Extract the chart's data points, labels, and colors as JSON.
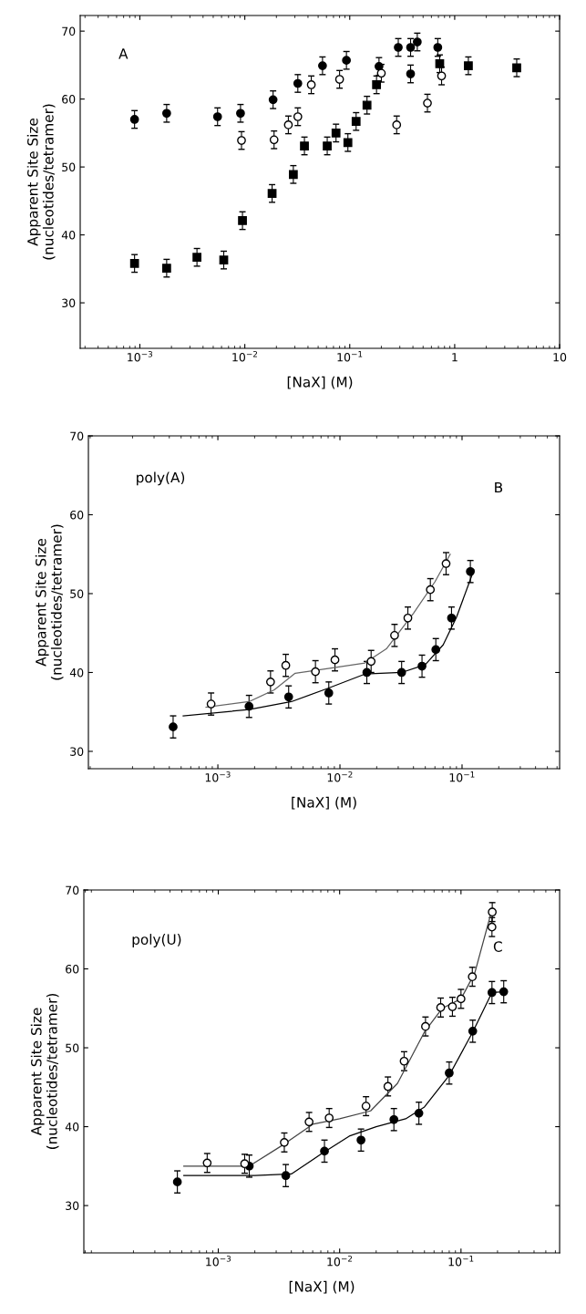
{
  "chart_data": [
    {
      "type": "scatter",
      "xlabel": "[NaX] (M)",
      "ylabel": "Apparent Site Size\n(nucleotides/tetramer)",
      "log": "x",
      "xlim": [
        0.00027,
        10
      ],
      "ylim": [
        23.3,
        72.3
      ],
      "xticks": [
        {
          "value": 0.001,
          "label": "10$^{−3}$"
        },
        {
          "value": 0.01,
          "label": "10$^{−2}$"
        },
        {
          "value": 0.1,
          "label": "10$^{−1}$"
        },
        1,
        10
      ],
      "yticks": [
        30,
        40,
        50,
        60,
        70
      ],
      "grid": false,
      "annotations": [
        "A"
      ],
      "series": [
        {
          "marker": "circle",
          "color": "#000000",
          "x": [
            0.00089,
            0.0018,
            0.0055,
            0.0091,
            0.0186,
            0.032,
            0.055,
            0.093,
            0.19,
            0.29,
            0.38,
            0.44,
            0.69,
            0.38
          ],
          "values": [
            57.0,
            57.9,
            57.4,
            57.9,
            59.9,
            62.3,
            64.9,
            65.7,
            64.8,
            67.6,
            67.6,
            68.4,
            67.6,
            63.7
          ],
          "errors": [
            1.3,
            1.3,
            1.3,
            1.3,
            1.3,
            1.3,
            1.3,
            1.3,
            1.3,
            1.3,
            1.3,
            1.3,
            1.3,
            1.3
          ]
        },
        {
          "marker": "square",
          "color": "#000000",
          "x": [
            0.00089,
            0.0018,
            0.0035,
            0.0063,
            0.0095,
            0.0182,
            0.029,
            0.037,
            0.061,
            0.074,
            0.096,
            0.115,
            0.146,
            0.18,
            0.72,
            1.35,
            3.9
          ],
          "values": [
            35.8,
            35.1,
            36.7,
            36.3,
            42.1,
            46.1,
            48.9,
            53.1,
            53.1,
            55.0,
            53.6,
            56.7,
            59.1,
            62.1,
            65.2,
            64.9,
            64.6
          ],
          "errors": [
            1.3,
            1.3,
            1.3,
            1.3,
            1.3,
            1.3,
            1.3,
            1.3,
            1.3,
            1.3,
            1.3,
            1.3,
            1.3,
            1.3,
            1.3,
            1.3,
            1.3
          ]
        },
        {
          "marker": "circle",
          "color": "#ffffff",
          "x": [
            0.0093,
            0.019,
            0.026,
            0.032,
            0.043,
            0.08,
            0.2,
            0.28,
            0.55,
            0.75
          ],
          "values": [
            53.9,
            54.0,
            56.2,
            57.4,
            62.1,
            62.9,
            63.8,
            56.2,
            59.4,
            63.4
          ],
          "errors": [
            1.3,
            1.3,
            1.3,
            1.3,
            1.3,
            1.3,
            1.3,
            1.3,
            1.3,
            1.3
          ]
        }
      ]
    },
    {
      "type": "scatter",
      "xlabel": "[NaX] (M)",
      "ylabel": "Apparent Site Size\n(nucleotides/tetramer)",
      "log": "x",
      "xlim": [
        8.7e-05,
        0.63
      ],
      "ylim": [
        27.8,
        70
      ],
      "xticks": [
        {
          "value": 0.001,
          "label": "10$^{−3}$"
        },
        {
          "value": 0.01,
          "label": "10$^{−2}$"
        },
        {
          "value": 0.1,
          "label": "10$^{−1}$"
        }
      ],
      "yticks": [
        30,
        40,
        50,
        60,
        70
      ],
      "grid": false,
      "annotations": [
        "poly(A)",
        "B"
      ],
      "series": [
        {
          "marker": "circle",
          "color": "#000000",
          "x": [
            0.00043,
            0.0018,
            0.0038,
            0.0081,
            0.0166,
            0.032,
            0.047,
            0.061,
            0.082,
            0.117
          ],
          "values": [
            33.1,
            35.7,
            36.9,
            37.4,
            40.0,
            40.0,
            40.8,
            42.9,
            46.9,
            52.8
          ],
          "errors": [
            1.4,
            1.4,
            1.4,
            1.4,
            1.4,
            1.4,
            1.4,
            1.4,
            1.4,
            1.4
          ]
        },
        {
          "marker": "circle",
          "color": "#ffffff",
          "x": [
            0.00088,
            0.0027,
            0.0036,
            0.0063,
            0.0091,
            0.018,
            0.028,
            0.036,
            0.055,
            0.074
          ],
          "values": [
            36.0,
            38.8,
            40.9,
            40.1,
            41.6,
            41.4,
            44.7,
            46.9,
            50.5,
            53.8
          ],
          "errors": [
            1.4,
            1.4,
            1.4,
            1.4,
            1.4,
            1.4,
            1.4,
            1.4,
            1.4,
            1.4
          ]
        },
        {
          "type": "line",
          "line_style": "solid",
          "color": "#000000",
          "x": [
            0.00052,
            0.0018,
            0.004,
            0.008,
            0.016,
            0.032,
            0.05,
            0.07,
            0.09,
            0.125
          ],
          "values": [
            34.5,
            35.3,
            36.3,
            38.0,
            39.8,
            40.0,
            41.0,
            43.5,
            47.0,
            53.0
          ]
        },
        {
          "type": "line",
          "line_style": "solid",
          "color": "#666666",
          "x": [
            0.0008,
            0.0018,
            0.0029,
            0.0043,
            0.008,
            0.016,
            0.024,
            0.04,
            0.06,
            0.08
          ],
          "values": [
            35.6,
            36.3,
            37.8,
            39.9,
            40.5,
            41.2,
            43.0,
            47.5,
            51.5,
            55.0
          ]
        }
      ]
    },
    {
      "type": "scatter",
      "xlabel": "[NaX] (M)",
      "ylabel": "Apparent Site Size\n(nucleotides/tetramer)",
      "log": "x",
      "xlim": [
        7.8e-05,
        0.65
      ],
      "ylim": [
        24,
        70
      ],
      "xticks": [
        {
          "value": 0.001,
          "label": "10$^{−3}$"
        },
        {
          "value": 0.01,
          "label": "10$^{−2}$"
        },
        {
          "value": 0.1,
          "label": "10$^{−1}$"
        }
      ],
      "yticks": [
        30,
        40,
        50,
        60,
        70
      ],
      "grid": false,
      "annotations": [
        "poly(U)",
        "C"
      ],
      "series": [
        {
          "marker": "circle",
          "color": "#000000",
          "x": [
            0.00046,
            0.0018,
            0.0036,
            0.0075,
            0.015,
            0.028,
            0.045,
            0.08,
            0.125,
            0.18,
            0.225
          ],
          "values": [
            33.0,
            35.0,
            33.8,
            36.9,
            38.3,
            40.9,
            41.7,
            46.8,
            52.1,
            57.0,
            57.1
          ],
          "errors": [
            1.4,
            1.4,
            1.4,
            1.4,
            1.4,
            1.4,
            1.4,
            1.4,
            1.4,
            1.4,
            1.4
          ]
        },
        {
          "marker": "circle",
          "color": "#ffffff",
          "x": [
            0.00081,
            0.00165,
            0.0035,
            0.0056,
            0.0082,
            0.0165,
            0.025,
            0.034,
            0.051,
            0.068,
            0.085,
            0.1,
            0.124,
            0.18,
            0.181
          ],
          "values": [
            35.4,
            35.3,
            38.0,
            40.6,
            41.1,
            42.6,
            45.1,
            48.3,
            52.7,
            55.1,
            55.2,
            56.2,
            59.0,
            65.3,
            67.2
          ],
          "errors": [
            1.2,
            1.2,
            1.2,
            1.2,
            1.2,
            1.2,
            1.2,
            1.2,
            1.2,
            1.2,
            1.2,
            1.2,
            1.2,
            1.2,
            1.2
          ]
        },
        {
          "type": "line",
          "line_style": "solid",
          "color": "#000000",
          "x": [
            0.00052,
            0.002,
            0.004,
            0.007,
            0.012,
            0.02,
            0.035,
            0.05,
            0.08,
            0.125,
            0.18,
            0.225
          ],
          "values": [
            33.8,
            33.8,
            34.0,
            36.5,
            38.8,
            40.0,
            41.0,
            42.5,
            46.5,
            52.0,
            57.0,
            57.1
          ]
        },
        {
          "type": "line",
          "line_style": "solid",
          "color": "#444444",
          "x": [
            0.00052,
            0.0018,
            0.0035,
            0.006,
            0.01,
            0.018,
            0.03,
            0.05,
            0.07,
            0.1,
            0.13,
            0.18
          ],
          "values": [
            35.0,
            35.0,
            37.8,
            40.3,
            41.0,
            42.0,
            45.5,
            52.0,
            55.0,
            56.2,
            59.5,
            67.5
          ]
        }
      ]
    }
  ]
}
